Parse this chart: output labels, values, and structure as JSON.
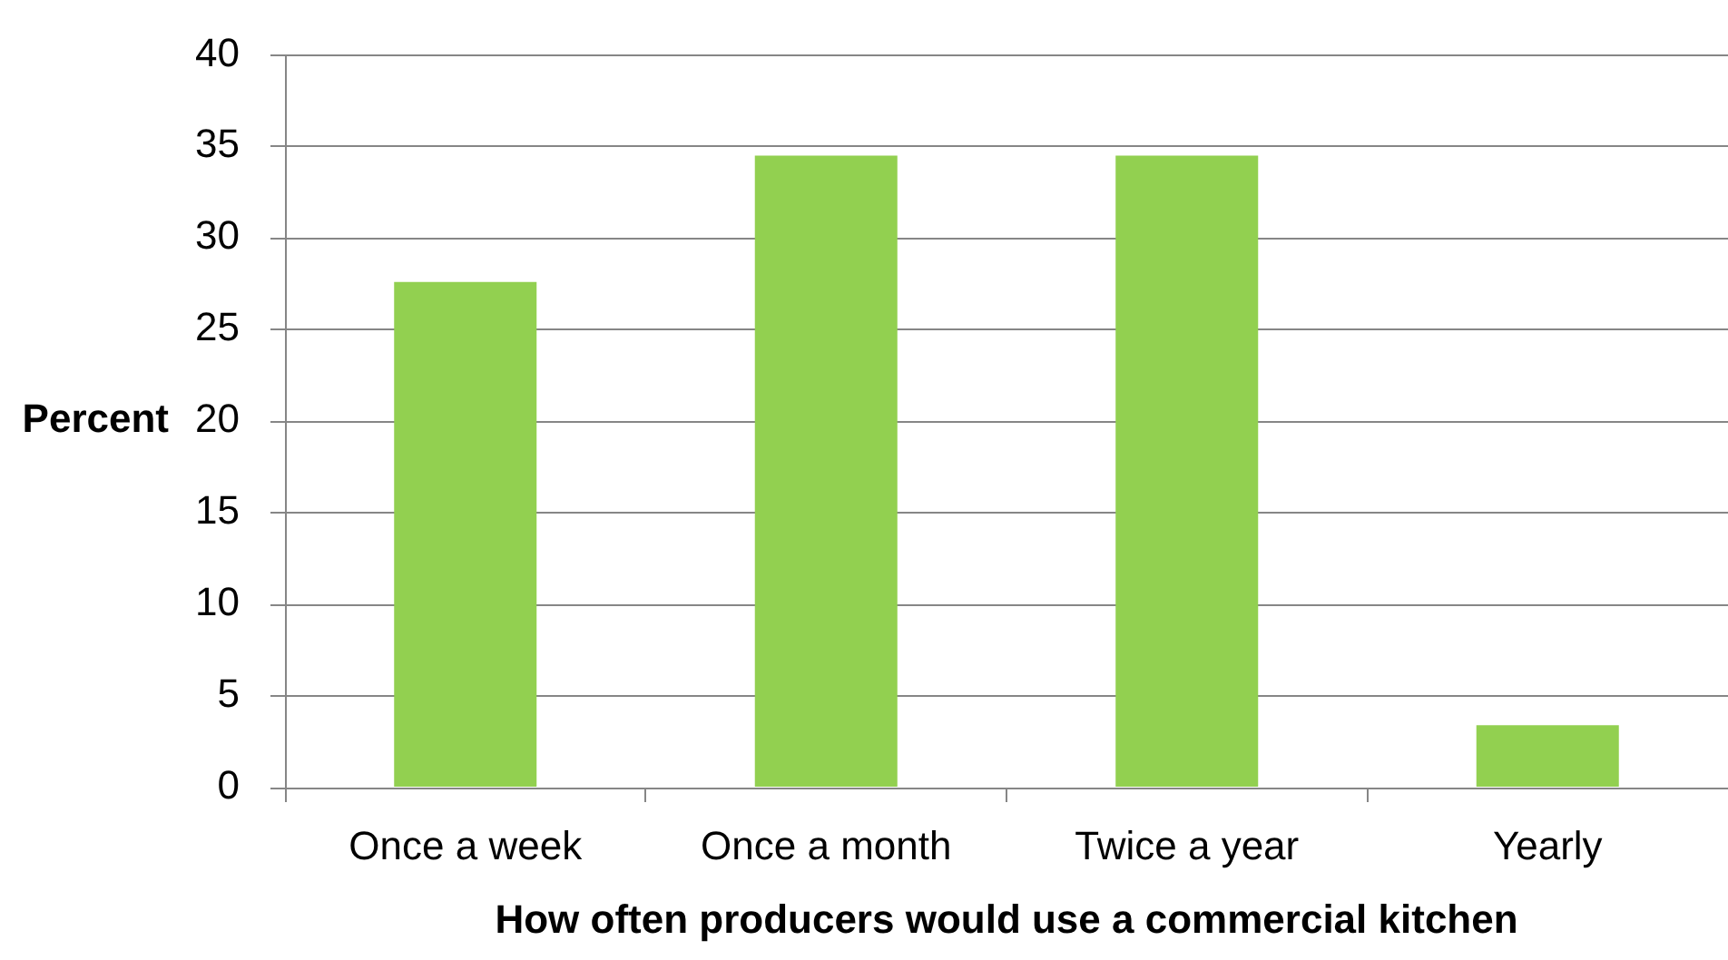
{
  "chart_data": {
    "type": "bar",
    "xlabel": "How often producers would use a commercial kitchen",
    "ylabel": "Percent",
    "categories": [
      "Once a week",
      "Once a month",
      "Twice a year",
      "Yearly"
    ],
    "values": [
      27.6,
      34.5,
      34.5,
      3.4
    ],
    "color": "#92d050",
    "ylim": [
      0,
      40
    ],
    "yticks": [
      0,
      5,
      10,
      15,
      20,
      25,
      30,
      35,
      40
    ],
    "grid": "y"
  }
}
